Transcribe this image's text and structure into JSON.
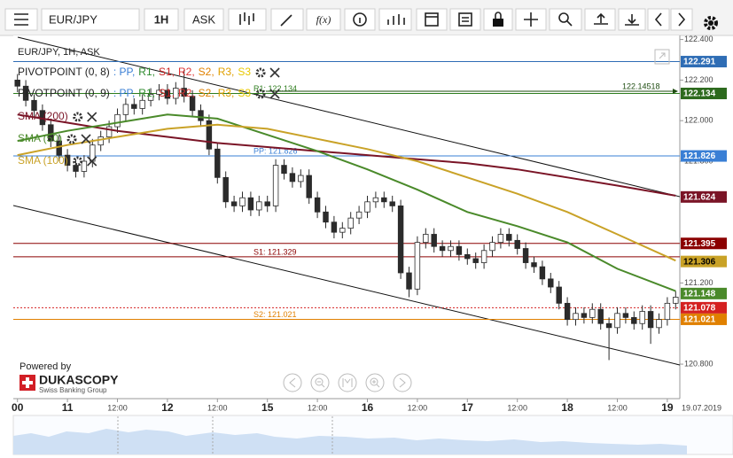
{
  "toolbar": {
    "symbol": "EUR/JPY",
    "period": "1H",
    "side": "ASK",
    "fx": "f(x)"
  },
  "chart_data": {
    "type": "candlestick",
    "title": "EUR/JPY, 1H, ASK",
    "xlim": [
      -13,
      147
    ],
    "ylim": [
      120.63,
      122.42
    ],
    "xticks": [
      {
        "value": -12,
        "label": "00"
      },
      {
        "value": 0,
        "label": "11"
      },
      {
        "value": 12,
        "label": "12:00"
      },
      {
        "value": 24,
        "label": "12"
      },
      {
        "value": 36,
        "label": "12:00"
      },
      {
        "value": 48,
        "label": "15"
      },
      {
        "value": 60,
        "label": "12:00"
      },
      {
        "value": 72,
        "label": "16"
      },
      {
        "value": 84,
        "label": "12:00"
      },
      {
        "value": 96,
        "label": "17"
      },
      {
        "value": 108,
        "label": "12:00"
      },
      {
        "value": 120,
        "label": "18"
      },
      {
        "value": 132,
        "label": "12:00"
      },
      {
        "value": 144,
        "label": "19"
      }
    ],
    "date_label": "19.07.2019",
    "yticks": [
      {
        "value": 122.4,
        "label": "122.400"
      },
      {
        "value": 122.2,
        "label": "122.200"
      },
      {
        "value": 122.0,
        "label": "122.000"
      },
      {
        "value": 121.8,
        "label": "121.800"
      },
      {
        "value": 121.2,
        "label": "121.200"
      },
      {
        "value": 120.8,
        "label": "120.800"
      }
    ],
    "up_color": "#ffffff",
    "down_color": "#2b2b2b",
    "outline_color": "#2b2b2b",
    "candles": {
      "x": [
        -12,
        -10,
        -8,
        -6,
        -4,
        -2,
        0,
        2,
        4,
        6,
        8,
        10,
        12,
        14,
        16,
        18,
        20,
        22,
        24,
        26,
        28,
        30,
        32,
        34,
        36,
        38,
        40,
        42,
        44,
        46,
        48,
        50,
        52,
        54,
        56,
        58,
        60,
        62,
        64,
        66,
        68,
        70,
        72,
        74,
        76,
        78,
        80,
        82,
        84,
        86,
        88,
        90,
        92,
        94,
        96,
        98,
        100,
        102,
        104,
        106,
        108,
        110,
        112,
        114,
        116,
        118,
        120,
        122,
        124,
        126,
        128,
        130,
        132,
        134,
        136,
        138,
        140,
        142,
        144,
        146
      ],
      "open": [
        122.2,
        122.17,
        122.1,
        122.05,
        121.98,
        121.9,
        121.83,
        121.78,
        121.75,
        121.8,
        121.88,
        121.92,
        121.97,
        122.03,
        122.08,
        122.06,
        122.1,
        122.13,
        122.15,
        122.11,
        122.16,
        122.12,
        122.05,
        122.0,
        121.86,
        121.72,
        121.6,
        121.58,
        121.62,
        121.56,
        121.6,
        121.58,
        121.78,
        121.74,
        121.7,
        121.73,
        121.62,
        121.55,
        121.5,
        121.45,
        121.47,
        121.52,
        121.55,
        121.6,
        121.62,
        121.6,
        121.58,
        121.25,
        121.17,
        121.4,
        121.44,
        121.38,
        121.36,
        121.38,
        121.34,
        121.32,
        121.3,
        121.36,
        121.4,
        121.44,
        121.41,
        121.37,
        121.3,
        121.28,
        121.22,
        121.18,
        121.1,
        121.02,
        121.05,
        121.03,
        121.07,
        121.0,
        120.98,
        121.05,
        121.03,
        121.0,
        121.06,
        120.98,
        121.02,
        121.1
      ],
      "high": [
        122.23,
        122.2,
        122.13,
        122.08,
        122.01,
        121.93,
        121.86,
        121.81,
        121.83,
        121.91,
        121.95,
        122.0,
        122.06,
        122.11,
        122.11,
        122.13,
        122.16,
        122.18,
        122.18,
        122.19,
        122.25,
        122.15,
        122.08,
        122.03,
        121.89,
        121.75,
        121.63,
        121.65,
        121.65,
        121.63,
        121.63,
        121.81,
        121.81,
        121.77,
        121.76,
        121.76,
        121.65,
        121.58,
        121.53,
        121.5,
        121.55,
        121.58,
        121.63,
        121.65,
        121.65,
        121.63,
        121.61,
        121.28,
        121.43,
        121.47,
        121.47,
        121.41,
        121.41,
        121.41,
        121.37,
        121.35,
        121.39,
        121.43,
        121.47,
        121.47,
        121.44,
        121.4,
        121.33,
        121.31,
        121.25,
        121.21,
        121.13,
        121.08,
        121.08,
        121.1,
        121.1,
        121.03,
        121.08,
        121.08,
        121.06,
        121.09,
        121.09,
        121.05,
        121.13,
        121.16
      ],
      "low": [
        122.14,
        122.07,
        122.02,
        121.95,
        121.87,
        121.8,
        121.75,
        121.72,
        121.72,
        121.77,
        121.85,
        121.89,
        121.94,
        122.0,
        122.03,
        122.03,
        122.07,
        122.1,
        122.08,
        122.08,
        122.09,
        122.02,
        121.97,
        121.83,
        121.69,
        121.57,
        121.55,
        121.55,
        121.53,
        121.53,
        121.55,
        121.55,
        121.71,
        121.67,
        121.67,
        121.59,
        121.52,
        121.47,
        121.42,
        121.42,
        121.44,
        121.49,
        121.52,
        121.57,
        121.57,
        121.55,
        121.22,
        121.13,
        121.14,
        121.37,
        121.35,
        121.33,
        121.33,
        121.31,
        121.29,
        121.27,
        121.27,
        121.33,
        121.37,
        121.38,
        121.34,
        121.27,
        121.25,
        121.19,
        121.15,
        121.07,
        120.99,
        120.99,
        121.0,
        121.0,
        120.97,
        120.82,
        120.95,
        121.0,
        120.97,
        120.97,
        120.9,
        120.95,
        120.99,
        121.07
      ],
      "close": [
        122.17,
        122.1,
        122.05,
        121.98,
        121.9,
        121.83,
        121.78,
        121.75,
        121.8,
        121.88,
        121.92,
        121.97,
        122.03,
        122.08,
        122.06,
        122.1,
        122.13,
        122.15,
        122.11,
        122.16,
        122.12,
        122.05,
        122.0,
        121.86,
        121.72,
        121.6,
        121.58,
        121.62,
        121.56,
        121.6,
        121.58,
        121.78,
        121.74,
        121.7,
        121.73,
        121.62,
        121.55,
        121.5,
        121.45,
        121.47,
        121.52,
        121.55,
        121.6,
        121.62,
        121.6,
        121.58,
        121.25,
        121.17,
        121.4,
        121.44,
        121.38,
        121.36,
        121.38,
        121.34,
        121.32,
        121.3,
        121.36,
        121.4,
        121.44,
        121.41,
        121.37,
        121.3,
        121.28,
        121.22,
        121.18,
        121.1,
        121.02,
        121.05,
        121.03,
        121.07,
        121.0,
        120.98,
        121.05,
        121.03,
        121.0,
        121.06,
        120.98,
        121.02,
        121.1,
        121.13
      ]
    },
    "series": [
      {
        "name": "SMA (200)",
        "color": "#7a1426",
        "x": [
          -12,
          0,
          12,
          24,
          36,
          48,
          60,
          72,
          84,
          96,
          108,
          120,
          132,
          146
        ],
        "values": [
          122.03,
          121.99,
          121.95,
          121.92,
          121.89,
          121.87,
          121.85,
          121.83,
          121.81,
          121.79,
          121.76,
          121.72,
          121.68,
          121.63
        ]
      },
      {
        "name": "SMA (50)",
        "color": "#4a8a2a",
        "x": [
          -12,
          0,
          12,
          24,
          36,
          48,
          60,
          72,
          84,
          96,
          108,
          120,
          132,
          146
        ],
        "values": [
          121.9,
          121.95,
          121.99,
          122.03,
          122.01,
          121.93,
          121.85,
          121.76,
          121.66,
          121.55,
          121.48,
          121.4,
          121.27,
          121.16
        ]
      },
      {
        "name": "SMA (100)",
        "color": "#c9a227",
        "x": [
          -12,
          0,
          12,
          24,
          36,
          48,
          60,
          72,
          84,
          96,
          108,
          120,
          132,
          146
        ],
        "values": [
          121.83,
          121.88,
          121.92,
          121.96,
          121.98,
          121.96,
          121.91,
          121.86,
          121.8,
          121.72,
          121.64,
          121.55,
          121.44,
          121.31
        ]
      }
    ],
    "indicators": [
      {
        "name": "PIVOTPOINT (0, 8)",
        "parts": [
          {
            "text": ": PP,",
            "color": "#3a7fd5"
          },
          {
            "text": "R1,",
            "color": "#2e8b2e"
          },
          {
            "text": "S1,",
            "color": "#cc2222"
          },
          {
            "text": "R2,",
            "color": "#dd3333"
          },
          {
            "text": "S2,",
            "color": "#e08000"
          },
          {
            "text": "R3,",
            "color": "#e0a000"
          },
          {
            "text": "S3",
            "color": "#e8c800"
          }
        ]
      },
      {
        "name": "PIVOTPOINT (0, 9)",
        "parts": [
          {
            "text": ": PP,",
            "color": "#3a7fd5"
          },
          {
            "text": "R1,",
            "color": "#2e8b2e"
          },
          {
            "text": "S1,",
            "color": "#cc2222"
          },
          {
            "text": "R2,",
            "color": "#dd3333"
          },
          {
            "text": "S2,",
            "color": "#e08000"
          },
          {
            "text": "R3,",
            "color": "#e0a000"
          },
          {
            "text": "S3",
            "color": "#e8c800"
          }
        ]
      }
    ],
    "levels": [
      {
        "value": 122.291,
        "color": "#2f6db5"
      },
      {
        "value": 122.134,
        "label": "R1: 122.134",
        "color": "#2e7d1e"
      },
      {
        "value": 121.826,
        "label": "PP: 121.826",
        "color": "#3a7fd5"
      },
      {
        "value": 121.395,
        "color": "#8b0000"
      },
      {
        "value": 121.329,
        "label": "S1: 121.329",
        "color": "#8b0000"
      },
      {
        "value": 121.078,
        "color": "#d42020",
        "dash": true
      },
      {
        "value": 121.021,
        "label": "S2: 121.021",
        "color": "#e08000"
      }
    ],
    "last_marker": {
      "value": 122.14518,
      "label": "122.14518",
      "color": "#1f4d12"
    },
    "price_tags": [
      {
        "value": 122.291,
        "color": "#2f6db5"
      },
      {
        "value": 122.134,
        "color": "#2d6a1e"
      },
      {
        "value": 121.826,
        "color": "#3a7fd5"
      },
      {
        "value": 121.624,
        "color": "#7a1426"
      },
      {
        "value": 121.395,
        "color": "#8b0000"
      },
      {
        "value": 121.306,
        "color": "#c9a227",
        "text_color": "#000000"
      },
      {
        "value": 121.148,
        "color": "#4a8a2a"
      },
      {
        "value": 121.078,
        "color": "#d42020"
      },
      {
        "value": 121.021,
        "color": "#e08000"
      }
    ]
  },
  "branding": {
    "powered": "Powered by",
    "name": "DUKASCOPY",
    "tagline": "Swiss Banking Group"
  }
}
